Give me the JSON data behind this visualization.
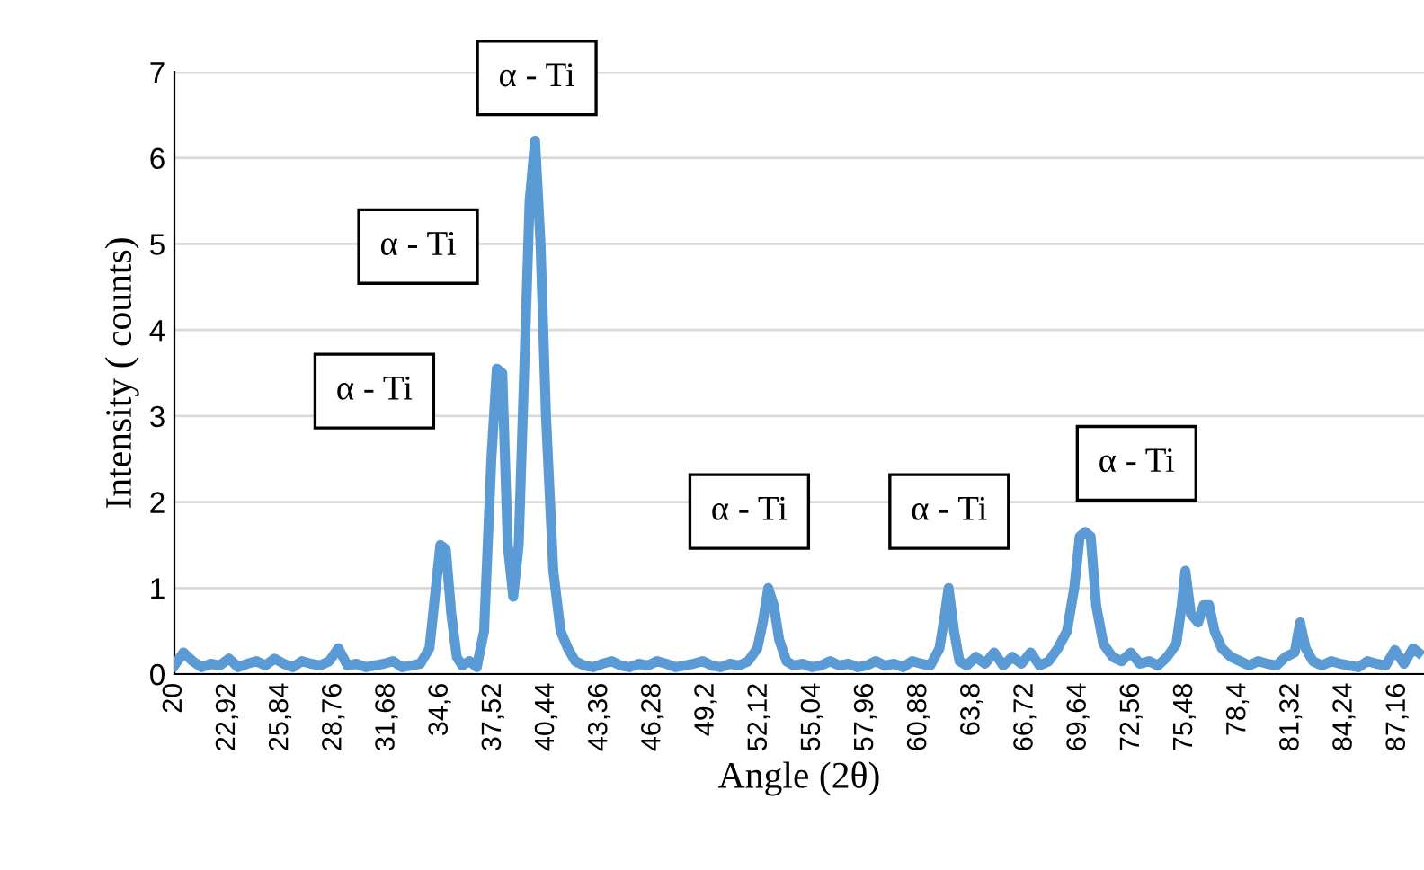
{
  "chart_data": {
    "type": "line",
    "xlabel": "Angle (2θ)",
    "ylabel": "Intensity ( counts)",
    "x": [
      20,
      20.5,
      21,
      21.5,
      22,
      22.5,
      23,
      23.5,
      24,
      24.5,
      25,
      25.5,
      26,
      26.5,
      27,
      27.5,
      28,
      28.5,
      29,
      29.5,
      30,
      30.5,
      31,
      31.5,
      32,
      32.5,
      33,
      33.5,
      34,
      34.3,
      34.6,
      34.9,
      35.2,
      35.5,
      35.8,
      36.2,
      36.6,
      37,
      37.4,
      37.7,
      38,
      38.3,
      38.6,
      38.9,
      39.2,
      39.5,
      39.8,
      40.1,
      40.4,
      40.8,
      41.2,
      41.6,
      42,
      42.5,
      43,
      43.5,
      44,
      44.5,
      45,
      45.5,
      46,
      46.5,
      47,
      47.5,
      48,
      48.5,
      49,
      49.5,
      50,
      50.5,
      51,
      51.5,
      52,
      52.3,
      52.6,
      52.9,
      53.2,
      53.6,
      54,
      54.5,
      55,
      55.5,
      56,
      56.5,
      57,
      57.5,
      58,
      58.5,
      59,
      59.5,
      60,
      60.5,
      61,
      61.5,
      62,
      62.3,
      62.5,
      62.8,
      63.1,
      63.5,
      64,
      64.5,
      65,
      65.5,
      66,
      66.5,
      67,
      67.5,
      68,
      68.5,
      69,
      69.4,
      69.7,
      70,
      70.3,
      70.6,
      71,
      71.5,
      72,
      72.5,
      73,
      73.5,
      74,
      74.5,
      75,
      75.3,
      75.5,
      75.8,
      76.2,
      76.5,
      76.8,
      77.1,
      77.5,
      78,
      78.5,
      79,
      79.5,
      80,
      80.5,
      81,
      81.5,
      81.8,
      82.1,
      82.5,
      83,
      83.5,
      84,
      84.5,
      85,
      85.5,
      86,
      86.5,
      87,
      87.5,
      88,
      88.3
    ],
    "series": [
      {
        "color": "#5b9bd5",
        "values": [
          0.1,
          0.25,
          0.15,
          0.08,
          0.12,
          0.1,
          0.18,
          0.08,
          0.12,
          0.15,
          0.1,
          0.18,
          0.12,
          0.08,
          0.15,
          0.12,
          0.1,
          0.15,
          0.3,
          0.1,
          0.12,
          0.08,
          0.1,
          0.12,
          0.15,
          0.08,
          0.1,
          0.12,
          0.3,
          0.9,
          1.5,
          1.45,
          0.7,
          0.2,
          0.1,
          0.15,
          0.08,
          0.5,
          2.5,
          3.55,
          3.5,
          1.5,
          0.9,
          1.5,
          3.5,
          5.5,
          6.2,
          5.0,
          3.0,
          1.2,
          0.5,
          0.3,
          0.15,
          0.1,
          0.08,
          0.12,
          0.15,
          0.1,
          0.08,
          0.12,
          0.1,
          0.15,
          0.12,
          0.08,
          0.1,
          0.12,
          0.15,
          0.1,
          0.08,
          0.12,
          0.1,
          0.15,
          0.3,
          0.6,
          1.0,
          0.8,
          0.4,
          0.15,
          0.1,
          0.12,
          0.08,
          0.1,
          0.15,
          0.1,
          0.12,
          0.08,
          0.1,
          0.15,
          0.1,
          0.12,
          0.08,
          0.15,
          0.12,
          0.1,
          0.3,
          0.7,
          1.0,
          0.5,
          0.15,
          0.1,
          0.2,
          0.12,
          0.25,
          0.1,
          0.2,
          0.12,
          0.25,
          0.1,
          0.15,
          0.3,
          0.5,
          1.0,
          1.6,
          1.65,
          1.6,
          0.8,
          0.35,
          0.2,
          0.15,
          0.25,
          0.12,
          0.15,
          0.1,
          0.2,
          0.35,
          0.8,
          1.2,
          0.7,
          0.6,
          0.8,
          0.8,
          0.5,
          0.3,
          0.2,
          0.15,
          0.1,
          0.15,
          0.12,
          0.1,
          0.2,
          0.25,
          0.6,
          0.3,
          0.15,
          0.1,
          0.15,
          0.12,
          0.1,
          0.08,
          0.15,
          0.12,
          0.1,
          0.28,
          0.12,
          0.3,
          0.25
        ]
      }
    ],
    "xlim": [
      20,
      88.6
    ],
    "ylim": [
      0,
      7
    ],
    "xticks": [
      20,
      {
        "value": 22.92,
        "label": "22,92"
      },
      {
        "value": 25.84,
        "label": "25,84"
      },
      {
        "value": 28.76,
        "label": "28,76"
      },
      {
        "value": 31.68,
        "label": "31,68"
      },
      {
        "value": 34.6,
        "label": "34,6"
      },
      {
        "value": 37.52,
        "label": "37,52"
      },
      {
        "value": 40.44,
        "label": "40,44"
      },
      {
        "value": 43.36,
        "label": "43,36"
      },
      {
        "value": 46.28,
        "label": "46,28"
      },
      {
        "value": 49.2,
        "label": "49,2"
      },
      {
        "value": 52.12,
        "label": "52,12"
      },
      {
        "value": 55.04,
        "label": "55,04"
      },
      {
        "value": 57.96,
        "label": "57,96"
      },
      {
        "value": 60.88,
        "label": "60,88"
      },
      {
        "value": 63.8,
        "label": "63,8"
      },
      {
        "value": 66.72,
        "label": "66,72"
      },
      {
        "value": 69.64,
        "label": "69,64"
      },
      {
        "value": 72.56,
        "label": "72,56"
      },
      {
        "value": 75.48,
        "label": "75,48"
      },
      {
        "value": 78.4,
        "label": "78,4"
      },
      {
        "value": 81.32,
        "label": "81,32"
      },
      {
        "value": 84.24,
        "label": "84,24"
      },
      {
        "value": 87.16,
        "label": "87,16"
      }
    ],
    "yticks": [
      0,
      1,
      2,
      3,
      4,
      5,
      6,
      7
    ],
    "grid": "y",
    "legend": false,
    "marker": "none",
    "line_style": "solid",
    "annotations": [
      "α - Ti",
      "α - Ti",
      "α - Ti",
      "α - Ti",
      "α - Ti",
      "α - Ti"
    ]
  }
}
